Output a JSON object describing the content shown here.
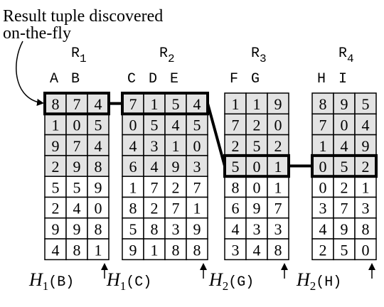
{
  "annotation": [
    "Result tuple discovered",
    "on-the-fly"
  ],
  "relations": [
    {
      "name": "R",
      "sub": "1",
      "columns": [
        "A",
        "B"
      ],
      "rows": [
        [
          8,
          7,
          4
        ],
        [
          1,
          0,
          5
        ],
        [
          9,
          7,
          4
        ],
        [
          2,
          9,
          8
        ],
        [
          5,
          5,
          9
        ],
        [
          2,
          4,
          0
        ],
        [
          9,
          9,
          8
        ],
        [
          4,
          8,
          1
        ]
      ],
      "shaded_rows": 4,
      "highlighted_row": 0,
      "hash": {
        "func": "H",
        "sub": "1",
        "arg": "(B)"
      }
    },
    {
      "name": "R",
      "sub": "2",
      "columns": [
        "C",
        "D",
        "E"
      ],
      "rows": [
        [
          7,
          1,
          5,
          4
        ],
        [
          0,
          5,
          4,
          5
        ],
        [
          4,
          3,
          1,
          0
        ],
        [
          6,
          4,
          9,
          3
        ],
        [
          1,
          7,
          2,
          7
        ],
        [
          8,
          2,
          7,
          1
        ],
        [
          5,
          8,
          3,
          9
        ],
        [
          9,
          1,
          8,
          8
        ]
      ],
      "shaded_rows": 4,
      "highlighted_row": 0,
      "hash": {
        "func": "H",
        "sub": "1",
        "arg": "(C)"
      }
    },
    {
      "name": "R",
      "sub": "3",
      "columns": [
        "F",
        "G"
      ],
      "rows": [
        [
          1,
          1,
          9
        ],
        [
          7,
          2,
          0
        ],
        [
          2,
          5,
          2
        ],
        [
          5,
          0,
          1
        ],
        [
          8,
          0,
          1
        ],
        [
          6,
          9,
          7
        ],
        [
          4,
          3,
          3
        ],
        [
          3,
          4,
          8
        ]
      ],
      "shaded_rows": 4,
      "highlighted_row": 3,
      "hash": {
        "func": "H",
        "sub": "2",
        "arg": "(G)"
      }
    },
    {
      "name": "R",
      "sub": "4",
      "columns": [
        "H",
        "I"
      ],
      "rows": [
        [
          8,
          9,
          5
        ],
        [
          7,
          0,
          4
        ],
        [
          1,
          4,
          9
        ],
        [
          0,
          5,
          2
        ],
        [
          0,
          2,
          1
        ],
        [
          3,
          7,
          3
        ],
        [
          4,
          9,
          8
        ],
        [
          2,
          5,
          0
        ]
      ],
      "shaded_rows": 4,
      "highlighted_row": 3,
      "hash": {
        "func": "H",
        "sub": "2",
        "arg": "(H)"
      }
    }
  ]
}
